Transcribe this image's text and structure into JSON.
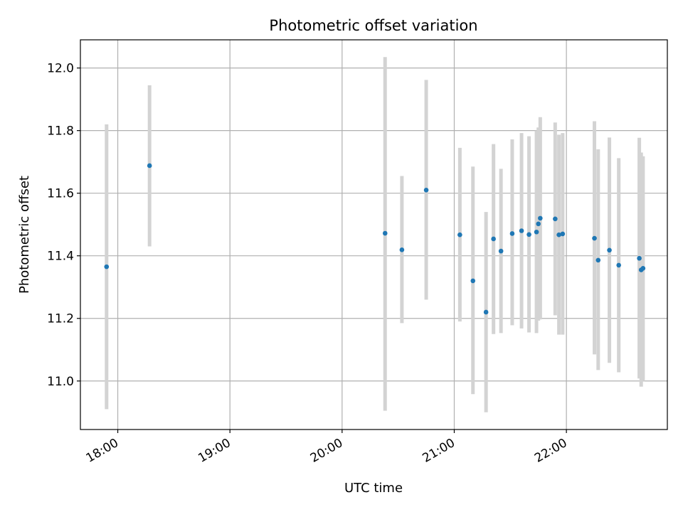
{
  "chart_data": {
    "type": "scatter",
    "title": "Photometric offset variation",
    "xlabel": "UTC time",
    "ylabel": "Photometric offset",
    "x_axis_kind": "time (HH:MM, UTC)",
    "xlim": [
      "17:40",
      "22:54"
    ],
    "ylim": [
      10.845,
      12.09
    ],
    "x_ticks": [
      "18:00",
      "19:00",
      "20:00",
      "21:00",
      "22:00"
    ],
    "y_ticks": [
      "11.0",
      "11.2",
      "11.4",
      "11.6",
      "11.8",
      "12.0"
    ],
    "grid": true,
    "legend": "none",
    "point_color": "#1f77b4",
    "errorbar_color": "#d3d3d3",
    "points": [
      {
        "x": "17:54",
        "y": 11.365,
        "err_low": 10.91,
        "err_high": 11.82
      },
      {
        "x": "18:17",
        "y": 11.688,
        "err_low": 11.43,
        "err_high": 11.945
      },
      {
        "x": "20:23",
        "y": 11.472,
        "err_low": 10.905,
        "err_high": 12.035
      },
      {
        "x": "20:32",
        "y": 11.419,
        "err_low": 11.185,
        "err_high": 11.655
      },
      {
        "x": "20:45",
        "y": 11.61,
        "err_low": 11.26,
        "err_high": 11.962
      },
      {
        "x": "21:03",
        "y": 11.467,
        "err_low": 11.19,
        "err_high": 11.745
      },
      {
        "x": "21:10",
        "y": 11.32,
        "err_low": 10.958,
        "err_high": 11.685
      },
      {
        "x": "21:17",
        "y": 11.22,
        "err_low": 10.9,
        "err_high": 11.54
      },
      {
        "x": "21:21",
        "y": 11.454,
        "err_low": 11.15,
        "err_high": 11.757
      },
      {
        "x": "21:25",
        "y": 11.415,
        "err_low": 11.153,
        "err_high": 11.678
      },
      {
        "x": "21:31",
        "y": 11.471,
        "err_low": 11.178,
        "err_high": 11.772
      },
      {
        "x": "21:36",
        "y": 11.48,
        "err_low": 11.168,
        "err_high": 11.792
      },
      {
        "x": "21:40",
        "y": 11.468,
        "err_low": 11.155,
        "err_high": 11.782
      },
      {
        "x": "21:44",
        "y": 11.476,
        "err_low": 11.153,
        "err_high": 11.8
      },
      {
        "x": "21:45",
        "y": 11.502,
        "err_low": 11.193,
        "err_high": 11.81
      },
      {
        "x": "21:46",
        "y": 11.52,
        "err_low": 11.197,
        "err_high": 11.843
      },
      {
        "x": "21:54",
        "y": 11.518,
        "err_low": 11.21,
        "err_high": 11.826
      },
      {
        "x": "21:56",
        "y": 11.467,
        "err_low": 11.148,
        "err_high": 11.787
      },
      {
        "x": "21:58",
        "y": 11.47,
        "err_low": 11.148,
        "err_high": 11.792
      },
      {
        "x": "22:15",
        "y": 11.456,
        "err_low": 11.085,
        "err_high": 11.83
      },
      {
        "x": "22:17",
        "y": 11.386,
        "err_low": 11.035,
        "err_high": 11.74
      },
      {
        "x": "22:23",
        "y": 11.418,
        "err_low": 11.058,
        "err_high": 11.778
      },
      {
        "x": "22:28",
        "y": 11.37,
        "err_low": 11.028,
        "err_high": 11.712
      },
      {
        "x": "22:39",
        "y": 11.392,
        "err_low": 11.008,
        "err_high": 11.777
      },
      {
        "x": "22:40",
        "y": 11.355,
        "err_low": 10.982,
        "err_high": 11.73
      },
      {
        "x": "22:41",
        "y": 11.36,
        "err_low": 11.0,
        "err_high": 11.718
      }
    ]
  }
}
